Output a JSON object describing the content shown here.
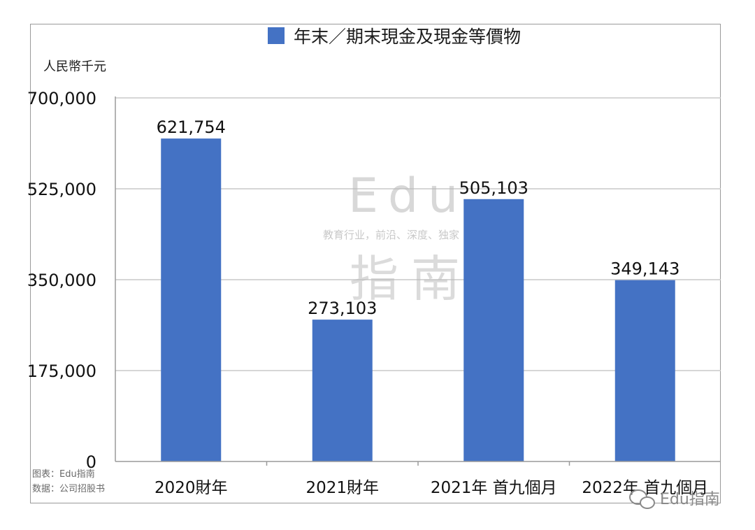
{
  "chart_data": {
    "type": "bar",
    "title": "",
    "legend": [
      "年末／期末現金及現金等價物"
    ],
    "ylabel": "人民幣千元",
    "xlabel": "",
    "categories": [
      "2020財年",
      "2021財年",
      "2021年 首九個月",
      "2022年 首九個月"
    ],
    "series": [
      {
        "name": "年末／期末現金及現金等價物",
        "values": [
          621754,
          273103,
          505103,
          349143
        ]
      }
    ],
    "data_labels": [
      "621,754",
      "273,103",
      "505,103",
      "349,143"
    ],
    "ylim": [
      0,
      700000
    ],
    "yticks": [
      0,
      175000,
      350000,
      525000,
      700000
    ],
    "ytick_labels": [
      "0",
      "175,000",
      "350,000",
      "525,000",
      "700,000"
    ],
    "grid": true,
    "legend_position": "top",
    "colors": {
      "bar": "#4472c4",
      "grid": "#c9c9c9",
      "axis": "#999999"
    }
  },
  "source": {
    "chart_by": "图表：Edu指南",
    "data_from": "数据：公司招股书"
  },
  "watermark": {
    "logo": "Edu",
    "tagline": "教育行业，前沿、深度、独家",
    "cn": "指南"
  },
  "branding": {
    "wechat_icon": "wechat-icon",
    "account": "Edu指南"
  }
}
